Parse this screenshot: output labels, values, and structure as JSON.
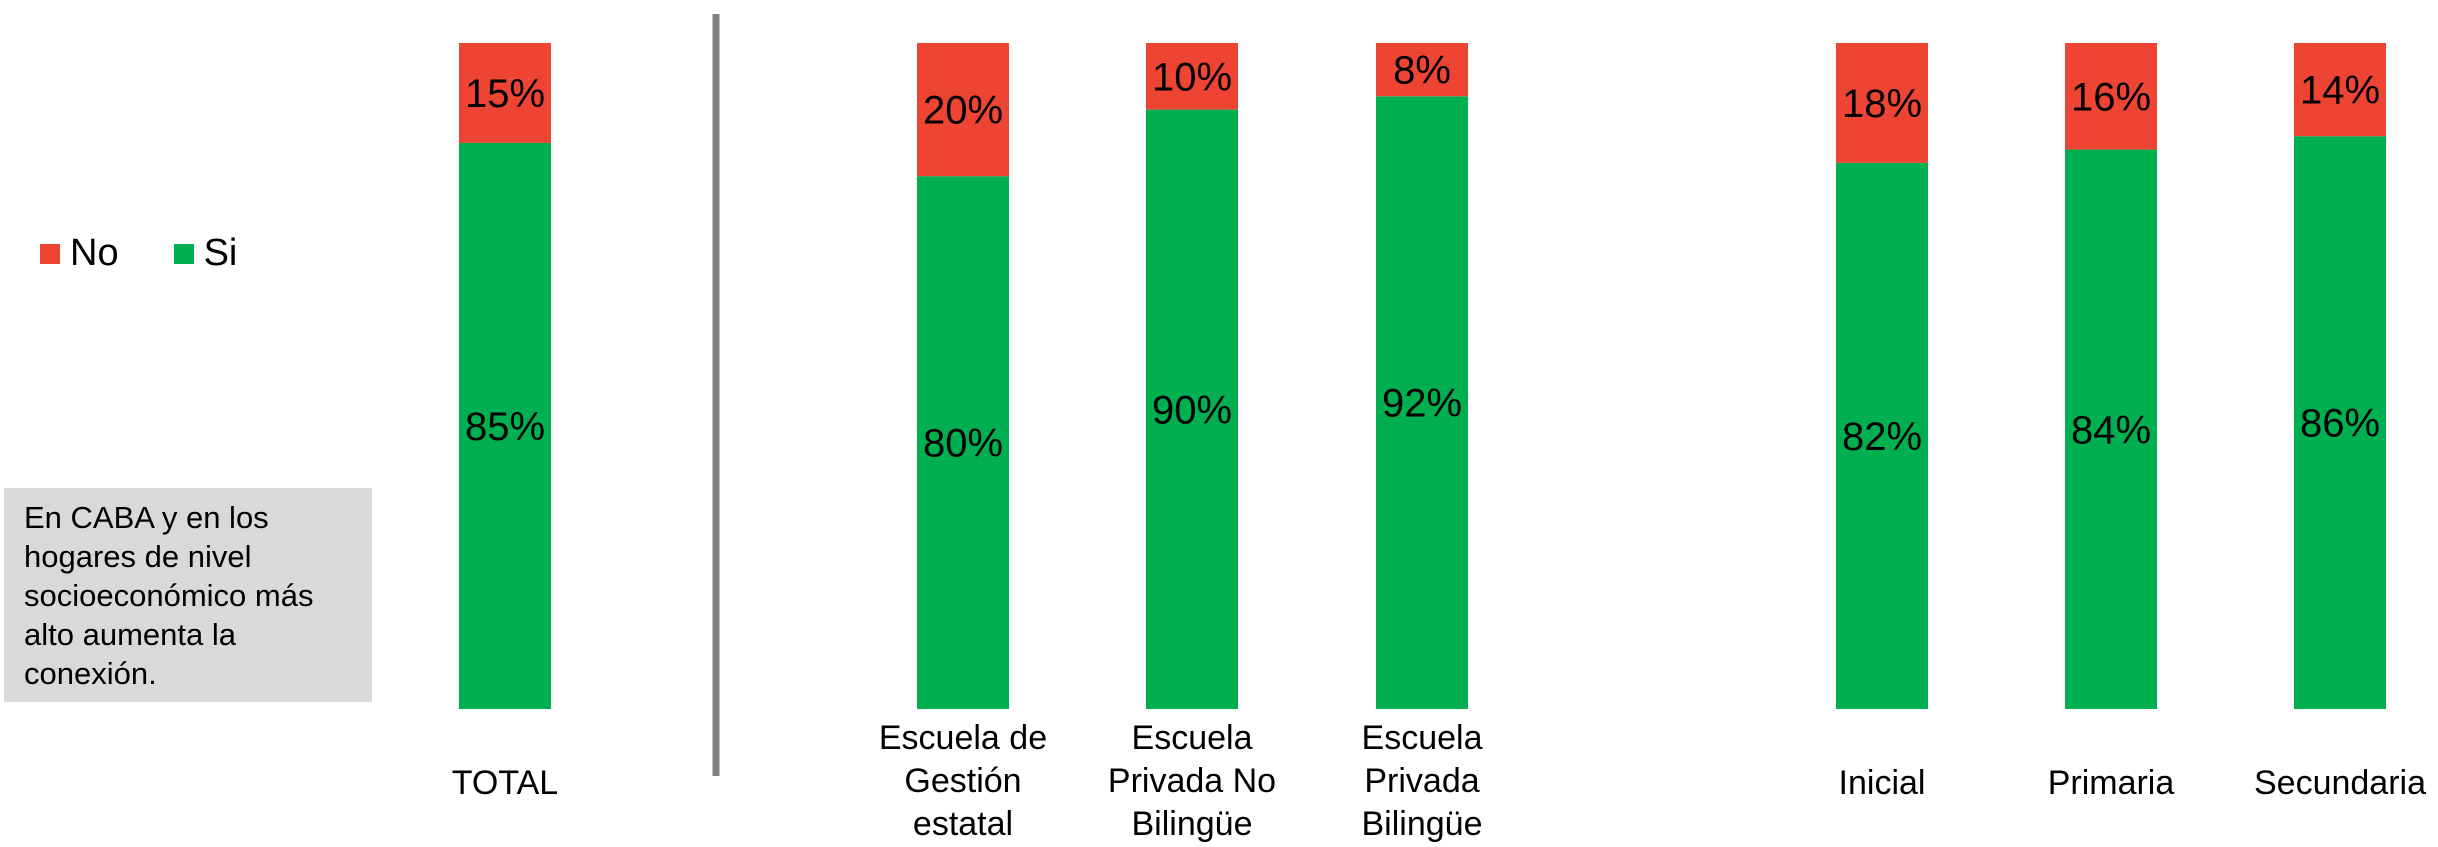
{
  "legend": {
    "items": [
      {
        "label": "No",
        "color": "#ee4434"
      },
      {
        "label": "Si",
        "color": "#00b050"
      }
    ]
  },
  "note": {
    "text": "En CABA y en los hogares de nivel socioeconómico más alto aumenta la conexión."
  },
  "chart_data": {
    "type": "bar",
    "stacked": true,
    "percent": true,
    "ylim": [
      0,
      100
    ],
    "grid": false,
    "legend_position": "left",
    "categories": [
      [
        "TOTAL"
      ],
      [
        "Escuela de",
        "Gestión",
        "estatal"
      ],
      [
        "Escuela",
        "Privada No",
        "Bilingüe"
      ],
      [
        "Escuela",
        "Privada",
        "Bilingüe"
      ],
      [
        "Inicial"
      ],
      [
        "Primaria"
      ],
      [
        "Secundaria"
      ]
    ],
    "series": [
      {
        "name": "Si",
        "color": "#00b050",
        "values": [
          85,
          80,
          90,
          92,
          82,
          84,
          86
        ],
        "labels": [
          "85%",
          "80%",
          "90%",
          "92%",
          "82%",
          "84%",
          "86%"
        ]
      },
      {
        "name": "No",
        "color": "#ee4434",
        "values": [
          15,
          20,
          10,
          8,
          18,
          16,
          14
        ],
        "labels": [
          "15%",
          "20%",
          "10%",
          "8%",
          "18%",
          "16%",
          "14%"
        ]
      }
    ],
    "separator_after_index": 0
  }
}
